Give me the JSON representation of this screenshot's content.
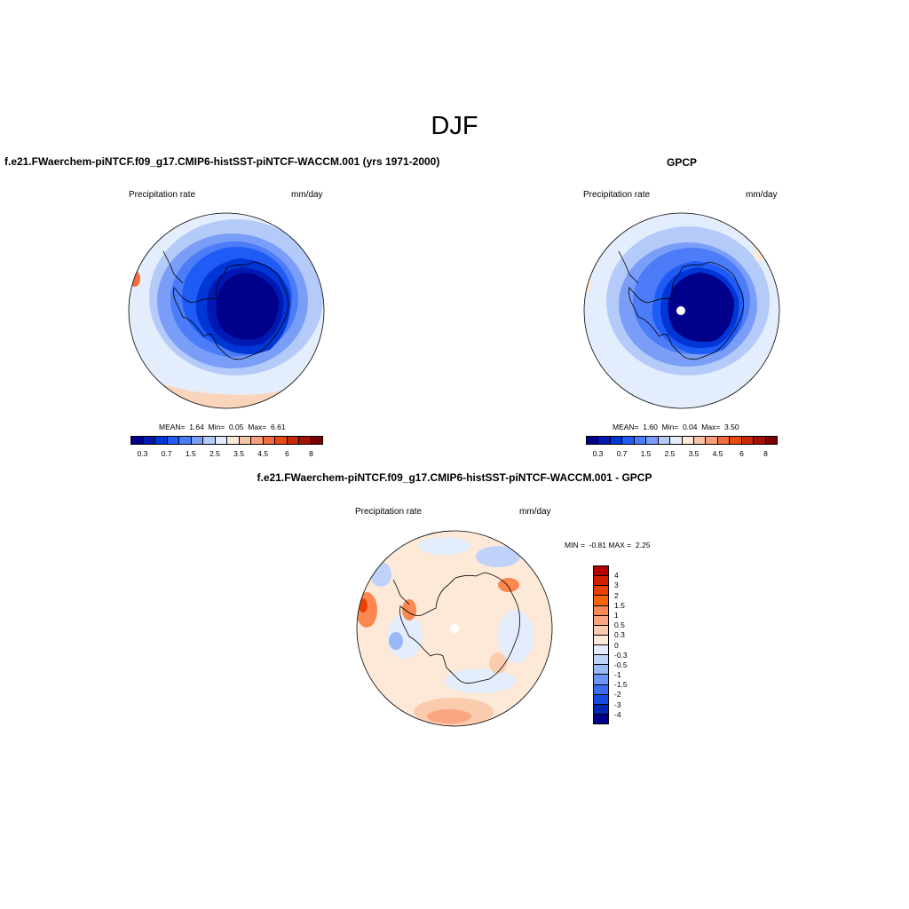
{
  "title": "DJF",
  "colors": {
    "model_scale": [
      "#00008b",
      "#0019b2",
      "#0035d6",
      "#1f5cf5",
      "#4c7cf8",
      "#7a9ef8",
      "#b4cbf9",
      "#e4edfc",
      "#fde9d8",
      "#f9c3a6",
      "#f79e7a",
      "#f36d40",
      "#e84a14",
      "#c82a05",
      "#a41203",
      "#7e0000"
    ],
    "diff_scale": [
      "#b30000",
      "#d31f00",
      "#ea4100",
      "#f9640b",
      "#fa8850",
      "#f9a681",
      "#fbcbad",
      "#fde9d8",
      "#e4edfc",
      "#bfd3fa",
      "#9ab8f8",
      "#6c95f7",
      "#3c6cf4",
      "#1849e0",
      "#0028b5",
      "#00008b"
    ]
  },
  "panels": {
    "model": {
      "title": "f.e21.FWaerchem-piNTCF.f09_g17.CMIP6-histSST-piNTCF-WACCM.001 (yrs 1971-2000)",
      "variable": "Precipitation rate",
      "units": "mm/day",
      "stats": {
        "mean_label": "MEAN=",
        "mean": "1.64",
        "min_label": "Min=",
        "min": "0.05",
        "max_label": "Max=",
        "max": "6.61"
      },
      "ticks": [
        "0.3",
        "0.7",
        "1.5",
        "2.5",
        "3.5",
        "4.5",
        "6",
        "8"
      ]
    },
    "obs": {
      "title": "GPCP",
      "variable": "Precipitation rate",
      "units": "mm/day",
      "stats": {
        "mean_label": "MEAN=",
        "mean": "1.60",
        "min_label": "Min=",
        "min": "0.04",
        "max_label": "Max=",
        "max": "3.50"
      },
      "ticks": [
        "0.3",
        "0.7",
        "1.5",
        "2.5",
        "3.5",
        "4.5",
        "6",
        "8"
      ]
    },
    "diff": {
      "title": "f.e21.FWaerchem-piNTCF.f09_g17.CMIP6-histSST-piNTCF-WACCM.001 - GPCP",
      "variable": "Precipitation rate",
      "units": "mm/day",
      "minmax": {
        "min_label": "MIN =",
        "min": "-0.81",
        "max_label": "MAX =",
        "max": "2.25"
      },
      "ticks": [
        "4",
        "3",
        "2",
        "1.5",
        "1",
        "0.5",
        "0.3",
        "0",
        "-0.3",
        "-0.5",
        "-1",
        "-1.5",
        "-2",
        "-3",
        "-4"
      ]
    }
  }
}
